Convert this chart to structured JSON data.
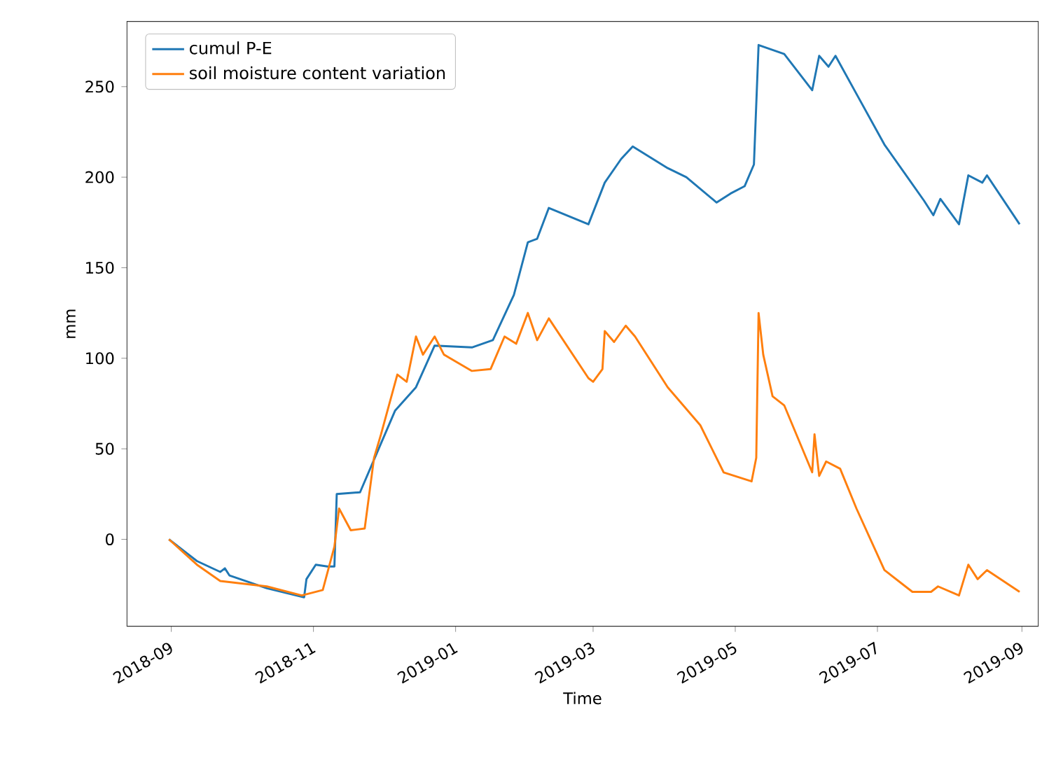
{
  "chart_data": {
    "type": "line",
    "xlabel": "Time",
    "ylabel": "mm",
    "xlim": [
      "2018-08-13",
      "2019-09-08"
    ],
    "ylim": [
      -48,
      286
    ],
    "xticks": [
      "2018-09",
      "2018-11",
      "2019-01",
      "2019-03",
      "2019-05",
      "2019-07",
      "2019-09"
    ],
    "yticks": [
      0,
      50,
      100,
      150,
      200,
      250
    ],
    "legend": "top left",
    "grid": false,
    "marker": "none",
    "line_style": "solid",
    "series": [
      {
        "name": "cumul P-E",
        "color": "#1f77b4",
        "x": [
          "2018-08-31",
          "2018-09-12",
          "2018-09-22",
          "2018-09-24",
          "2018-09-26",
          "2018-10-12",
          "2018-10-28",
          "2018-10-29",
          "2018-11-02",
          "2018-11-07",
          "2018-11-10",
          "2018-11-11",
          "2018-11-21",
          "2018-11-29",
          "2018-12-06",
          "2018-12-15",
          "2018-12-23",
          "2019-01-08",
          "2019-01-17",
          "2019-01-26",
          "2019-02-01",
          "2019-02-05",
          "2019-02-10",
          "2019-02-27",
          "2019-03-06",
          "2019-03-13",
          "2019-03-18",
          "2019-04-02",
          "2019-04-10",
          "2019-04-23",
          "2019-04-29",
          "2019-05-05",
          "2019-05-09",
          "2019-05-11",
          "2019-05-22",
          "2019-06-03",
          "2019-06-06",
          "2019-06-10",
          "2019-06-13",
          "2019-06-22",
          "2019-07-04",
          "2019-07-21",
          "2019-07-25",
          "2019-07-28",
          "2019-08-05",
          "2019-08-09",
          "2019-08-15",
          "2019-08-17",
          "2019-08-31"
        ],
        "values": [
          0,
          -12,
          -18,
          -16,
          -20,
          -27,
          -32,
          -22,
          -14,
          -15,
          -15,
          25,
          26,
          50,
          71,
          84,
          107,
          106,
          110,
          135,
          164,
          166,
          183,
          174,
          197,
          210,
          217,
          205,
          200,
          186,
          191,
          195,
          207,
          273,
          268,
          248,
          267,
          261,
          267,
          246,
          218,
          187,
          179,
          188,
          174,
          201,
          197,
          201,
          174
        ]
      },
      {
        "name": "soil moisture content variation",
        "color": "#ff7f0e",
        "x": [
          "2018-08-31",
          "2018-09-12",
          "2018-09-22",
          "2018-10-12",
          "2018-10-27",
          "2018-11-05",
          "2018-11-10",
          "2018-11-12",
          "2018-11-17",
          "2018-11-23",
          "2018-11-27",
          "2018-11-30",
          "2018-12-07",
          "2018-12-11",
          "2018-12-15",
          "2018-12-18",
          "2018-12-23",
          "2018-12-27",
          "2019-01-08",
          "2019-01-16",
          "2019-01-22",
          "2019-01-27",
          "2019-02-01",
          "2019-02-05",
          "2019-02-10",
          "2019-02-27",
          "2019-03-01",
          "2019-03-05",
          "2019-03-06",
          "2019-03-10",
          "2019-03-15",
          "2019-03-19",
          "2019-04-02",
          "2019-04-16",
          "2019-04-26",
          "2019-05-08",
          "2019-05-10",
          "2019-05-11",
          "2019-05-13",
          "2019-05-17",
          "2019-05-22",
          "2019-06-03",
          "2019-06-04",
          "2019-06-06",
          "2019-06-09",
          "2019-06-15",
          "2019-06-22",
          "2019-07-04",
          "2019-07-16",
          "2019-07-24",
          "2019-07-27",
          "2019-08-05",
          "2019-08-09",
          "2019-08-13",
          "2019-08-17",
          "2019-08-31"
        ],
        "values": [
          0,
          -14,
          -23,
          -26,
          -31,
          -28,
          -4,
          17,
          5,
          6,
          45,
          58,
          91,
          87,
          112,
          102,
          112,
          102,
          93,
          94,
          112,
          108,
          125,
          110,
          122,
          89,
          87,
          94,
          115,
          109,
          118,
          112,
          84,
          63,
          37,
          32,
          45,
          125,
          102,
          79,
          74,
          37,
          58,
          35,
          43,
          39,
          17,
          -17,
          -29,
          -29,
          -26,
          -31,
          -14,
          -22,
          -17,
          -29
        ]
      }
    ]
  }
}
